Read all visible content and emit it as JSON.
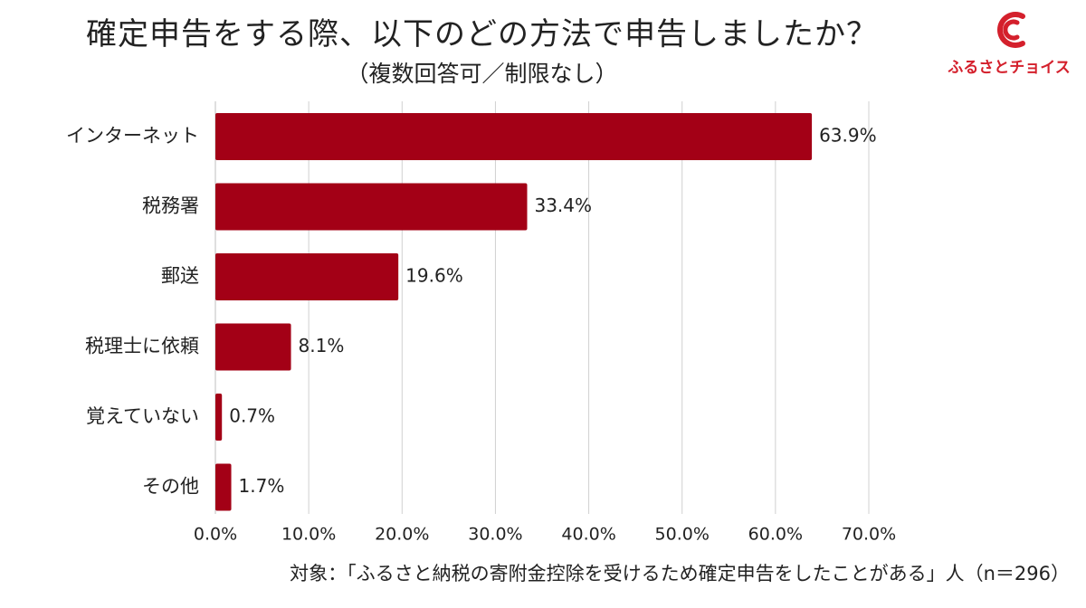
{
  "header": {
    "title": "確定申告をする際、以下のどの方法で申告しましたか？",
    "subtitle": "（複数回答可／制限なし）"
  },
  "logo": {
    "icon": "furusato-choice-c-logo-icon",
    "text": "ふるさとチョイス",
    "color": "#d4202c"
  },
  "footnote": "対象：「ふるさと納税の寄附金控除を受けるため確定申告をしたことがある」人（n＝296）",
  "colors": {
    "bar": "#a30016",
    "grid": "#d0d0d0",
    "axis": "#bfbfbf"
  },
  "chart_data": {
    "type": "bar",
    "orientation": "horizontal",
    "title": "確定申告をする際、以下のどの方法で申告しましたか？",
    "subtitle": "（複数回答可／制限なし）",
    "categories": [
      "インターネット",
      "税務署",
      "郵送",
      "税理士に依頼",
      "覚えていない",
      "その他"
    ],
    "values": [
      63.9,
      33.4,
      19.6,
      8.1,
      0.7,
      1.7
    ],
    "value_labels": [
      "63.9%",
      "33.4%",
      "19.6%",
      "8.1%",
      "0.7%",
      "1.7%"
    ],
    "xlim": [
      0,
      70
    ],
    "xticks": [
      0,
      10,
      20,
      30,
      40,
      50,
      60,
      70
    ],
    "xtick_labels": [
      "0.0%",
      "10.0%",
      "20.0%",
      "30.0%",
      "40.0%",
      "50.0%",
      "60.0%",
      "70.0%"
    ],
    "xlabel": "",
    "ylabel": "",
    "grid": true,
    "legend": false
  }
}
